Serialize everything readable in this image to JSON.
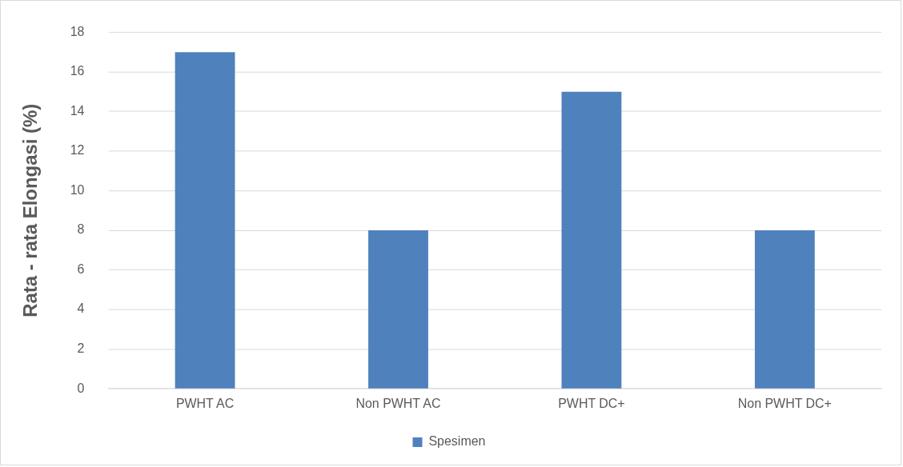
{
  "chart_data": {
    "type": "bar",
    "ylabel": "Rata - rata Elongasi (%)",
    "categories": [
      "PWHT AC",
      "Non PWHT AC",
      "PWHT DC+",
      "Non PWHT DC+"
    ],
    "series": [
      {
        "name": "Spesimen",
        "color": "#4f81bd",
        "values": [
          17,
          8,
          15,
          8
        ]
      }
    ],
    "ylim": [
      0,
      18
    ],
    "yticks": [
      0,
      2,
      4,
      6,
      8,
      10,
      12,
      14,
      16,
      18
    ],
    "grid": "y",
    "legend": "bottom"
  }
}
